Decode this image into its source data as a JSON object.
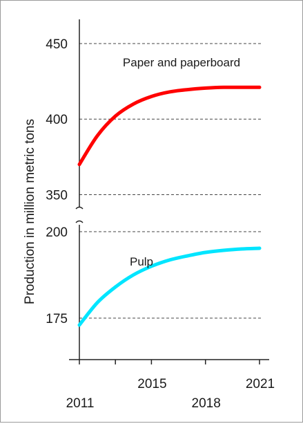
{
  "chart_data": {
    "type": "line",
    "title": "",
    "xlabel": "",
    "ylabel": "Production in million metric tons",
    "y_axis_break": true,
    "grid": "horizontal-dashed",
    "x": {
      "range": [
        2011,
        2021
      ],
      "ticks": [
        2011,
        2013,
        2015,
        2018,
        2021
      ],
      "tick_labels": [
        {
          "value": 2011,
          "label": "2011",
          "row": "lower"
        },
        {
          "value": 2015,
          "label": "2015",
          "row": "upper"
        },
        {
          "value": 2018,
          "label": "2018",
          "row": "lower"
        },
        {
          "value": 2021,
          "label": "2021",
          "row": "upper"
        }
      ]
    },
    "panels": [
      {
        "id": "upper",
        "ylim": [
          342,
          466
        ],
        "yticks": [
          350,
          400,
          450
        ],
        "series": [
          {
            "name": "Paper and paperboard",
            "color": "#ff0000",
            "x": [
              2011,
              2012,
              2013,
              2014,
              2015,
              2016,
              2017,
              2018,
              2019,
              2020,
              2021
            ],
            "y": [
              370,
              389,
              402,
              410,
              415,
              418,
              419.5,
              420.5,
              421,
              421,
              421
            ]
          }
        ]
      },
      {
        "id": "lower",
        "ylim": [
          163,
          202
        ],
        "yticks": [
          175,
          200
        ],
        "series": [
          {
            "name": "Pulp",
            "color": "#00e5ff",
            "x": [
              2011,
              2012,
              2013,
              2014,
              2015,
              2016,
              2017,
              2018,
              2019,
              2020,
              2021
            ],
            "y": [
              173,
              179.5,
              184,
              187.5,
              190,
              191.8,
              193,
              194,
              194.6,
              195,
              195.2
            ]
          }
        ]
      }
    ]
  }
}
